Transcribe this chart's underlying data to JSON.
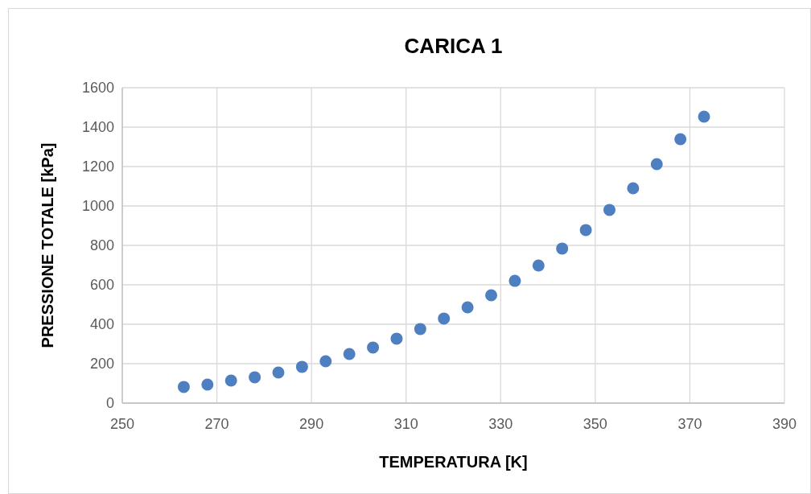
{
  "chart_data": {
    "type": "scatter",
    "title": "CARICA 1",
    "xlabel": "TEMPERATURA [K]",
    "ylabel": "PRESSIONE TOTALE [kPa]",
    "x": [
      263,
      268,
      273,
      278,
      283,
      288,
      293,
      298,
      303,
      308,
      313,
      318,
      323,
      328,
      333,
      338,
      343,
      348,
      353,
      358,
      363,
      368,
      373
    ],
    "series": [
      {
        "color": "#4e7fc0",
        "values": [
          82,
          94,
          114,
          131,
          155,
          184,
          212,
          249,
          282,
          327,
          376,
          429,
          486,
          547,
          620,
          698,
          784,
          878,
          980,
          1090,
          1212,
          1339,
          1453
        ]
      }
    ],
    "xlim": [
      250,
      390
    ],
    "xticks": [
      250,
      270,
      290,
      310,
      330,
      350,
      370,
      390
    ],
    "ylim": [
      0,
      1600
    ],
    "yticks": [
      0,
      200,
      400,
      600,
      800,
      1000,
      1200,
      1400,
      1600
    ],
    "grid": true,
    "marker": "circle"
  }
}
